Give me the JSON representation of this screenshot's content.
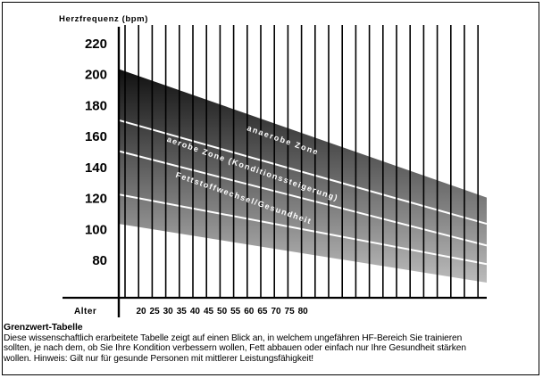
{
  "chart_data": {
    "type": "area",
    "ylabel": "Herzfrequenz (bpm)",
    "xlabel": "Alter",
    "y_ticks": [
      "220",
      "200",
      "180",
      "160",
      "140",
      "120",
      "100",
      "80"
    ],
    "x_ticks": [
      "20",
      "25",
      "30",
      "35",
      "40",
      "45",
      "50",
      "55",
      "60",
      "65",
      "70",
      "75",
      "80"
    ],
    "ylim": [
      65,
      230
    ],
    "series": [
      {
        "name": "anaerobe Zone",
        "boundary": [
          [
            20,
            203
          ],
          [
            80,
            120
          ]
        ]
      },
      {
        "name": "aerobe Zone (Konditionssteigerung)",
        "boundary": [
          [
            20,
            170
          ],
          [
            80,
            103
          ]
        ]
      },
      {
        "name": "Fettstoffwechsel/Gesundheit",
        "boundary": [
          [
            20,
            150
          ],
          [
            80,
            89
          ]
        ]
      },
      {
        "name": "",
        "boundary": [
          [
            20,
            122
          ],
          [
            80,
            77
          ]
        ]
      },
      {
        "name": "",
        "boundary": [
          [
            20,
            103
          ],
          [
            80,
            65
          ]
        ]
      }
    ],
    "zone_labels": [
      "anaerobe Zone",
      "aerobe Zone (Konditionssteigerung)",
      "Fettstoffwechsel/Gesundheit"
    ],
    "colors": {
      "top": "#111111",
      "bottom": "#bbbbbb",
      "background": "#ffffff",
      "lines": "#ffffff"
    }
  },
  "caption": {
    "title": "Grenzwert-Tabelle",
    "body": "Diese wissenschaftlich erarbeitete Tabelle zeigt auf einen Blick an, in welchem ungefähren HF-Bereich Sie trainieren\nsollten, je nach dem, ob Sie Ihre Kondition verbessern wollen, Fett abbauen oder einfach nur Ihre Gesundheit stärken\nwollen. Hinweis: Gilt nur für gesunde Personen mit mittlerer Leistungsfähigkeit!"
  }
}
